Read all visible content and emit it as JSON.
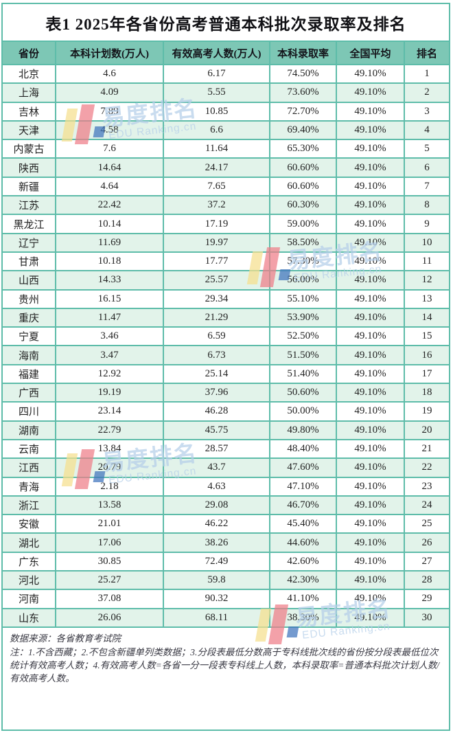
{
  "title": "表1 2025年各省份高考普通本科批次录取率及排名",
  "chart_data": {
    "type": "table",
    "title": "表1 2025年各省份高考普通本科批次录取率及排名",
    "columns": [
      "省份",
      "本科计划数(万人)",
      "有效高考人数(万人)",
      "本科录取率",
      "全国平均",
      "排名"
    ],
    "rows": [
      [
        "北京",
        "4.6",
        "6.17",
        "74.50%",
        "49.10%",
        "1"
      ],
      [
        "上海",
        "4.09",
        "5.55",
        "73.60%",
        "49.10%",
        "2"
      ],
      [
        "吉林",
        "7.89",
        "10.85",
        "72.70%",
        "49.10%",
        "3"
      ],
      [
        "天津",
        "4.58",
        "6.6",
        "69.40%",
        "49.10%",
        "4"
      ],
      [
        "内蒙古",
        "7.6",
        "11.64",
        "65.30%",
        "49.10%",
        "5"
      ],
      [
        "陕西",
        "14.64",
        "24.17",
        "60.60%",
        "49.10%",
        "6"
      ],
      [
        "新疆",
        "4.64",
        "7.65",
        "60.60%",
        "49.10%",
        "7"
      ],
      [
        "江苏",
        "22.42",
        "37.2",
        "60.30%",
        "49.10%",
        "8"
      ],
      [
        "黑龙江",
        "10.14",
        "17.19",
        "59.00%",
        "49.10%",
        "9"
      ],
      [
        "辽宁",
        "11.69",
        "19.97",
        "58.50%",
        "49.10%",
        "10"
      ],
      [
        "甘肃",
        "10.18",
        "17.77",
        "57.30%",
        "49.10%",
        "11"
      ],
      [
        "山西",
        "14.33",
        "25.57",
        "56.00%",
        "49.10%",
        "12"
      ],
      [
        "贵州",
        "16.15",
        "29.34",
        "55.10%",
        "49.10%",
        "13"
      ],
      [
        "重庆",
        "11.47",
        "21.29",
        "53.90%",
        "49.10%",
        "14"
      ],
      [
        "宁夏",
        "3.46",
        "6.59",
        "52.50%",
        "49.10%",
        "15"
      ],
      [
        "海南",
        "3.47",
        "6.73",
        "51.50%",
        "49.10%",
        "16"
      ],
      [
        "福建",
        "12.92",
        "25.14",
        "51.40%",
        "49.10%",
        "17"
      ],
      [
        "广西",
        "19.19",
        "37.96",
        "50.60%",
        "49.10%",
        "18"
      ],
      [
        "四川",
        "23.14",
        "46.28",
        "50.00%",
        "49.10%",
        "19"
      ],
      [
        "湖南",
        "22.79",
        "45.75",
        "49.80%",
        "49.10%",
        "20"
      ],
      [
        "云南",
        "13.84",
        "28.57",
        "48.40%",
        "49.10%",
        "21"
      ],
      [
        "江西",
        "20.79",
        "43.7",
        "47.60%",
        "49.10%",
        "22"
      ],
      [
        "青海",
        "2.18",
        "4.63",
        "47.10%",
        "49.10%",
        "23"
      ],
      [
        "浙江",
        "13.58",
        "29.08",
        "46.70%",
        "49.10%",
        "24"
      ],
      [
        "安徽",
        "21.01",
        "46.22",
        "45.40%",
        "49.10%",
        "25"
      ],
      [
        "湖北",
        "17.06",
        "38.26",
        "44.60%",
        "49.10%",
        "26"
      ],
      [
        "广东",
        "30.85",
        "72.49",
        "42.60%",
        "49.10%",
        "27"
      ],
      [
        "河北",
        "25.27",
        "59.8",
        "42.30%",
        "49.10%",
        "28"
      ],
      [
        "河南",
        "37.08",
        "90.32",
        "41.10%",
        "49.10%",
        "29"
      ],
      [
        "山东",
        "26.06",
        "68.11",
        "38.30%",
        "49.10%",
        "30"
      ]
    ],
    "national_average": "49.10%",
    "layout": {
      "striped_rows": true,
      "stripe_on": "even",
      "grid": true
    }
  },
  "footer": {
    "source": "数据来源：各省教育考试院",
    "note": "注：1.不含西藏；2.不包含新疆单列类数据；3.分段表最低分数高于专科线批次线的省份按分段表最低位次统计有效高考人数；4.有效高考人数=各省一分一段表专科线上人数，本科录取率=普通本科批次计划人数/有效高考人数。"
  },
  "watermark": {
    "brand": "易度排名",
    "brand_en": "EDU Ranking.cn"
  },
  "colors": {
    "header_bg": "#7dc7b5",
    "row_alt_bg": "#e2f3ea",
    "border": "#5dbca9",
    "watermark_text": "#b5cfe9",
    "logo_yellow": "#f6e08e",
    "logo_pink": "#ef7e89",
    "logo_blue": "#3f74bd"
  }
}
